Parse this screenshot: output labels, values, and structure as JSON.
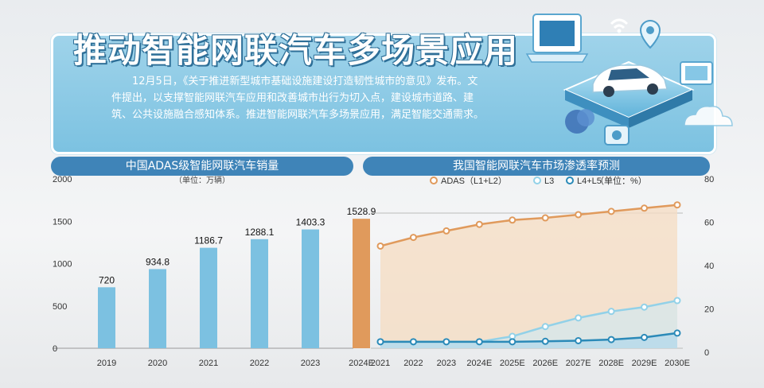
{
  "banner": {
    "title": "推动智能网联汽车多场景应用",
    "description": "12月5日，《关于推进新型城市基础设施建设打造韧性城市的意见》发布。文件提出，以支撑智能网联汽车应用和改善城市出行为切入点，建设城市道路、建筑、公共设施融合感知体系。推进智能网联汽车多场景应用，满足智能交通需求。"
  },
  "colors": {
    "bar": "#7cc1e1",
    "bar_estimate": "#e09a5c",
    "adas": "#e09a5c",
    "l3": "#92d1e8",
    "l4l5": "#2b8ab8",
    "header_bg": "#3f84b8"
  },
  "chart_data": [
    {
      "type": "bar",
      "title": "中国ADAS级智能网联汽车销量",
      "unit_label": "（单位：万辆）",
      "categories": [
        "2019",
        "2020",
        "2021",
        "2022",
        "2023",
        "2024E"
      ],
      "values": [
        720,
        934.8,
        1186.7,
        1288.1,
        1403.3,
        1528.9
      ],
      "value_labels": [
        "720",
        "934.8",
        "1186.7",
        "1288.1",
        "1403.3",
        "1528.9"
      ],
      "yticks": [
        "0",
        "500",
        "1000",
        "1500",
        "2000"
      ],
      "ylim": [
        0,
        2000
      ],
      "grid": false
    },
    {
      "type": "area",
      "title": "我国智能网联汽车市场渗透率预测",
      "categories": [
        "2021",
        "2022",
        "2023",
        "2024E",
        "2025E",
        "2026E",
        "2027E",
        "2028E",
        "2029E",
        "2030E"
      ],
      "series": [
        {
          "name": "ADAS（L1+L2）",
          "values": [
            49,
            53,
            56,
            59,
            61,
            62,
            63.5,
            65,
            66.5,
            68
          ]
        },
        {
          "name": "L3",
          "values": [
            3,
            3,
            3,
            3,
            5.5,
            10,
            14,
            17,
            19,
            22
          ]
        },
        {
          "name": "L4+L5",
          "values": [
            3,
            3,
            3,
            3,
            3,
            3.2,
            3.5,
            4,
            5,
            7
          ]
        }
      ],
      "legend_unit": "（单位：%）",
      "yticks": [
        "0",
        "20",
        "40",
        "60",
        "80"
      ],
      "ylim": [
        0,
        80
      ],
      "legend_position": "top-center",
      "grid": false
    }
  ]
}
